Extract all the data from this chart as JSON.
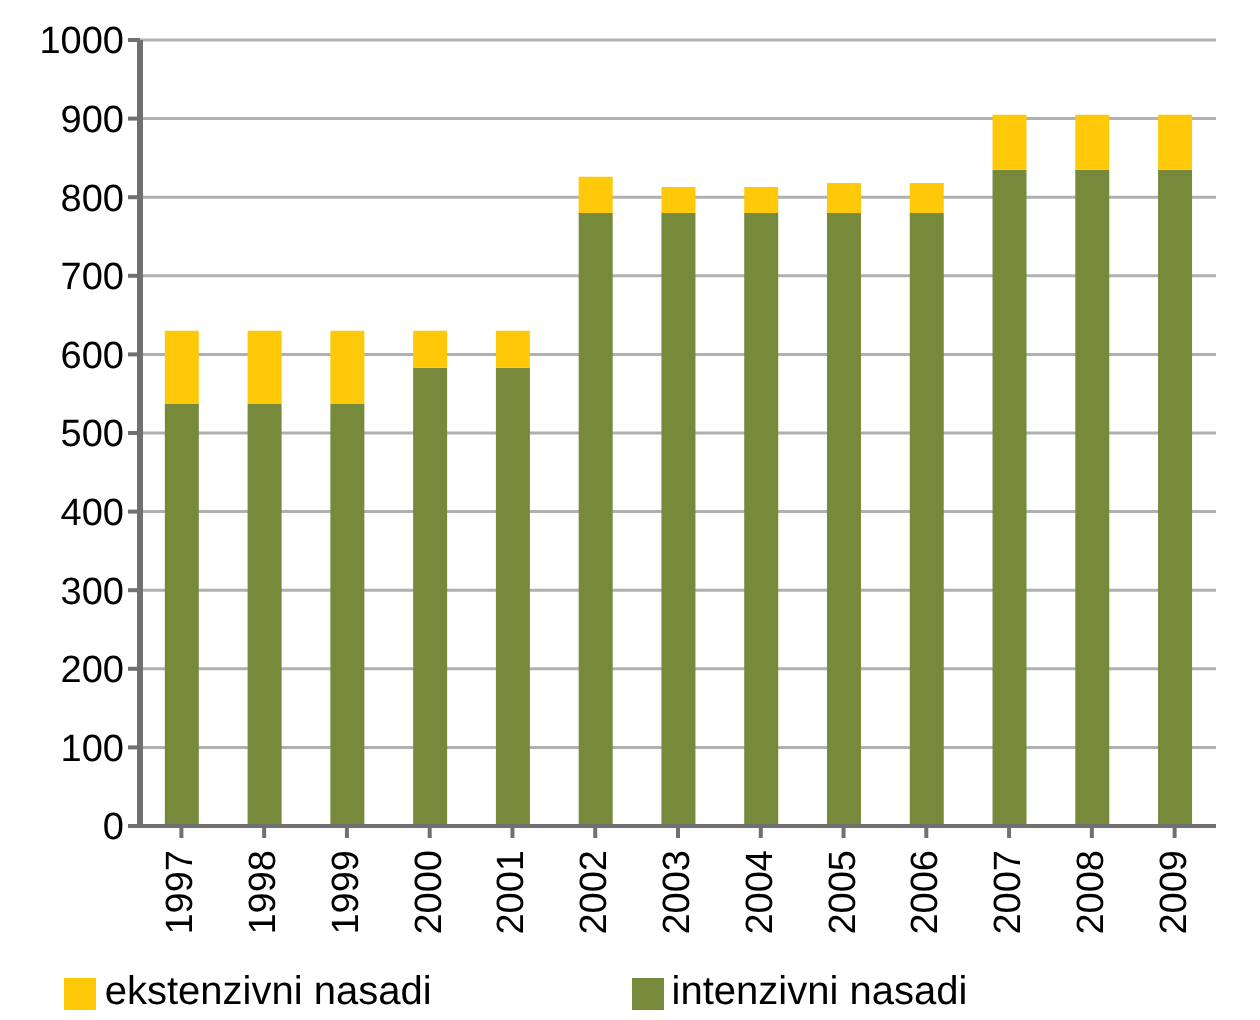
{
  "chart_data": {
    "type": "bar",
    "stacked": true,
    "categories": [
      "1997",
      "1998",
      "1999",
      "2000",
      "2001",
      "2002",
      "2003",
      "2004",
      "2005",
      "2006",
      "2007",
      "2008",
      "2009"
    ],
    "series": [
      {
        "name": "intenzivni nasadi",
        "color": "#77893b",
        "values": [
          537,
          537,
          537,
          583,
          583,
          780,
          780,
          780,
          780,
          780,
          835,
          835,
          835
        ]
      },
      {
        "name": "ekstenzivni nasadi",
        "color": "#ffc90a",
        "values": [
          93,
          93,
          93,
          47,
          47,
          46,
          33,
          33,
          38,
          38,
          70,
          70,
          70
        ]
      }
    ],
    "ylim": [
      0,
      1000
    ],
    "yticks": [
      0,
      100,
      200,
      300,
      400,
      500,
      600,
      700,
      800,
      900,
      1000
    ],
    "grid": "y",
    "legend": "bottom"
  }
}
